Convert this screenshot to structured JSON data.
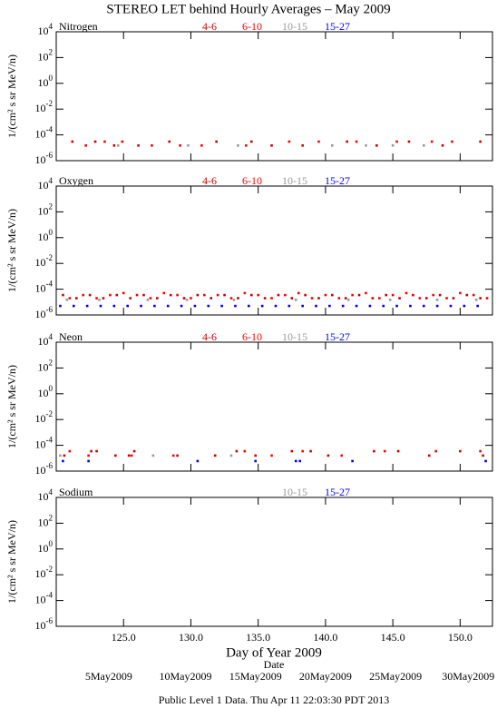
{
  "title": "STEREO LET behind Hourly Averages – May 2009",
  "footer": "Public Level 1 Data. Thu Apr 11 22:03:30 PDT 2013",
  "xlabel": "Day of Year 2009",
  "x2label": "Date",
  "xlim": [
    120,
    152.4
  ],
  "xticks": [
    {
      "value": 125,
      "label": "125.0"
    },
    {
      "value": 130,
      "label": "130.0"
    },
    {
      "value": 135,
      "label": "135.0"
    },
    {
      "value": 140,
      "label": "140.0"
    },
    {
      "value": 145,
      "label": "145.0"
    },
    {
      "value": 150,
      "label": "150.0"
    }
  ],
  "date_ticks": [
    {
      "value": 123.9,
      "label": "5May2009"
    },
    {
      "value": 129.6,
      "label": "10May2009"
    },
    {
      "value": 134.8,
      "label": "15May2009"
    },
    {
      "value": 140.0,
      "label": "20May2009"
    },
    {
      "value": 145.2,
      "label": "25May2009"
    },
    {
      "value": 150.6,
      "label": "30May2009"
    }
  ],
  "chart_data": [
    {
      "type": "scatter",
      "label": "Nitrogen",
      "ylabel": "1/(cm² s sr MeV/n)",
      "log_y": true,
      "ylim": [
        1e-06,
        10000
      ],
      "yticks": [
        {
          "value": 10000,
          "label": "10^4"
        },
        {
          "value": 100,
          "label": "10^2"
        },
        {
          "value": 1,
          "label": "10^0"
        },
        {
          "value": 0.01,
          "label": "10^-2"
        },
        {
          "value": 0.0001,
          "label": "10^-4"
        },
        {
          "value": 1e-06,
          "label": "10^-6"
        }
      ],
      "series": [
        {
          "name": "4-6",
          "color": "#cc0000",
          "x": [
            121.2,
            122.9,
            124.3,
            126.1,
            128.4,
            131.9,
            134.5,
            136.0,
            138.3,
            141.6,
            143.8,
            146.2,
            148.7,
            151.5
          ],
          "values": [
            3e-05,
            3e-05,
            1.5e-05,
            1.5e-05,
            3e-05,
            3e-05,
            3e-05,
            1.5e-05,
            1.5e-05,
            3e-05,
            1.5e-05,
            3e-05,
            1.5e-05,
            3e-05
          ]
        },
        {
          "name": "6-10",
          "color": "#ff0000",
          "x": [
            122.2,
            123.6,
            124.9,
            127.1,
            129.2,
            130.8,
            134.1,
            137.3,
            139.5,
            142.3,
            145.3,
            147.9,
            149.4
          ],
          "values": [
            1.5e-05,
            3e-05,
            3e-05,
            1.5e-05,
            1.5e-05,
            1.5e-05,
            1.5e-05,
            3e-05,
            3e-05,
            3e-05,
            3e-05,
            3e-05,
            3e-05
          ]
        },
        {
          "name": "10-15",
          "color": "#999999",
          "x": [
            124.6,
            129.8,
            133.5,
            140.5,
            143.0,
            145.0,
            147.3
          ],
          "values": [
            1.5e-05,
            1.5e-05,
            1.5e-05,
            1.5e-05,
            1.5e-05,
            1.5e-05,
            1.5e-05
          ]
        },
        {
          "name": "15-27",
          "color": "#0000ff",
          "x": [],
          "values": []
        }
      ]
    },
    {
      "type": "scatter",
      "label": "Oxygen",
      "ylabel": "1/(cm² s sr MeV/n)",
      "log_y": true,
      "ylim": [
        1e-06,
        10000
      ],
      "yticks": [
        {
          "value": 10000,
          "label": "10^4"
        },
        {
          "value": 100,
          "label": "10^2"
        },
        {
          "value": 1,
          "label": "10^0"
        },
        {
          "value": 0.01,
          "label": "10^-2"
        },
        {
          "value": 0.0001,
          "label": "10^-4"
        },
        {
          "value": 1e-06,
          "label": "10^-6"
        }
      ],
      "series": [
        {
          "name": "4-6",
          "color": "#cc0000",
          "x": [
            120.5,
            121.5,
            122.5,
            123.5,
            124.5,
            125.5,
            126.5,
            127.5,
            128.5,
            129.5,
            130.5,
            131.5,
            132.5,
            133.5,
            134.5,
            135.5,
            136.5,
            137.5,
            138.5,
            139.5,
            140.5,
            141.5,
            142.5,
            143.5,
            144.5,
            145.5,
            146.5,
            147.5,
            148.5,
            149.5,
            150.5,
            151.5
          ],
          "values": [
            3.5e-05,
            2e-05,
            3.5e-05,
            2e-05,
            3.5e-05,
            2e-05,
            3.5e-05,
            2e-05,
            3.5e-05,
            2e-05,
            3.5e-05,
            2e-05,
            3.5e-05,
            2e-05,
            3.5e-05,
            2e-05,
            3.5e-05,
            2e-05,
            3.5e-05,
            2e-05,
            3.5e-05,
            2e-05,
            3.5e-05,
            2e-05,
            3.5e-05,
            2e-05,
            3.5e-05,
            2e-05,
            3.5e-05,
            2e-05,
            3.5e-05,
            2e-05
          ]
        },
        {
          "name": "6-10",
          "color": "#ff0000",
          "x": [
            121.0,
            122.0,
            123.0,
            124.0,
            125.0,
            126.0,
            127.0,
            128.0,
            129.0,
            130.0,
            131.0,
            132.0,
            133.0,
            134.0,
            135.0,
            136.0,
            137.0,
            138.0,
            139.0,
            140.0,
            141.0,
            142.0,
            143.0,
            144.0,
            145.0,
            146.0,
            147.0,
            148.0,
            149.0,
            150.0,
            151.0,
            152.0
          ],
          "values": [
            2e-05,
            3.5e-05,
            2e-05,
            3.5e-05,
            5e-05,
            3.5e-05,
            2e-05,
            5e-05,
            3.5e-05,
            2e-05,
            3.5e-05,
            3.5e-05,
            2e-05,
            5e-05,
            3.5e-05,
            2e-05,
            3.5e-05,
            5e-05,
            2e-05,
            3.5e-05,
            2e-05,
            3.5e-05,
            5e-05,
            2e-05,
            3.5e-05,
            5e-05,
            2e-05,
            3.5e-05,
            2e-05,
            5e-05,
            3.5e-05,
            2e-05
          ]
        },
        {
          "name": "10-15",
          "color": "#999999",
          "x": [
            120.8,
            123.2,
            126.8,
            129.7,
            133.2,
            137.8,
            141.7,
            144.8,
            148.3,
            151.2
          ],
          "values": [
            1.5e-05,
            1.5e-05,
            1.5e-05,
            1.5e-05,
            1.5e-05,
            1.5e-05,
            1.5e-05,
            1.5e-05,
            1.5e-05,
            1.5e-05
          ]
        },
        {
          "name": "15-27",
          "color": "#0000ff",
          "x": [
            120.3,
            121.3,
            122.3,
            123.3,
            124.3,
            125.3,
            126.3,
            127.3,
            128.3,
            129.3,
            130.3,
            131.3,
            132.3,
            133.3,
            134.3,
            135.3,
            136.3,
            137.3,
            138.3,
            139.3,
            140.3,
            141.3,
            142.3,
            143.3,
            144.3,
            145.3,
            146.3,
            147.3,
            148.3,
            149.3,
            150.3,
            151.3
          ],
          "values": [
            5e-06,
            5e-06,
            5e-06,
            5e-06,
            5e-06,
            5e-06,
            5e-06,
            5e-06,
            5e-06,
            5e-06,
            5e-06,
            5e-06,
            5e-06,
            5e-06,
            5e-06,
            5e-06,
            5e-06,
            5e-06,
            5e-06,
            5e-06,
            5e-06,
            5e-06,
            5e-06,
            5e-06,
            5e-06,
            5e-06,
            5e-06,
            5e-06,
            5e-06,
            5e-06,
            5e-06,
            5e-06
          ]
        }
      ]
    },
    {
      "type": "scatter",
      "label": "Neon",
      "ylabel": "1/(cm² s sr MeV/n)",
      "log_y": true,
      "ylim": [
        1e-06,
        10000
      ],
      "yticks": [
        {
          "value": 10000,
          "label": "10^4"
        },
        {
          "value": 100,
          "label": "10^2"
        },
        {
          "value": 1,
          "label": "10^0"
        },
        {
          "value": 0.01,
          "label": "10^-2"
        },
        {
          "value": 0.0001,
          "label": "10^-4"
        },
        {
          "value": 1e-06,
          "label": "10^-6"
        }
      ],
      "series": [
        {
          "name": "4-6",
          "color": "#cc0000",
          "x": [
            120.6,
            122.6,
            123.0,
            124.4,
            125.4,
            125.8,
            129.0,
            131.8,
            133.4,
            134.8,
            137.5,
            138.9,
            140.2,
            143.6,
            145.4,
            147.7,
            150.0,
            151.7
          ],
          "values": [
            1.6e-05,
            3.5e-05,
            3.5e-05,
            1.6e-05,
            1.6e-05,
            3.5e-05,
            1.6e-05,
            1.6e-05,
            3.5e-05,
            1.6e-05,
            3.5e-05,
            3.5e-05,
            1.6e-05,
            3.5e-05,
            3.5e-05,
            1.6e-05,
            3.5e-05,
            1.6e-05
          ]
        },
        {
          "name": "6-10",
          "color": "#ff0000",
          "x": [
            121.0,
            122.4,
            125.6,
            128.7,
            134.0,
            136.0,
            138.3,
            141.2,
            144.4,
            148.2,
            151.5
          ],
          "values": [
            3.5e-05,
            1.6e-05,
            1.6e-05,
            1.6e-05,
            3.5e-05,
            1.6e-05,
            3.5e-05,
            1.6e-05,
            3.5e-05,
            3.5e-05,
            3.5e-05
          ]
        },
        {
          "name": "10-15",
          "color": "#999999",
          "x": [
            120.3,
            127.2,
            133.0
          ],
          "values": [
            1.6e-05,
            1.6e-05,
            1.6e-05
          ]
        },
        {
          "name": "15-27",
          "color": "#0000ff",
          "x": [
            120.5,
            122.4,
            130.5,
            134.8,
            137.8,
            138.1,
            142.0,
            151.9
          ],
          "values": [
            6e-06,
            6e-06,
            6e-06,
            6e-06,
            6e-06,
            6e-06,
            6e-06,
            6e-06
          ]
        }
      ]
    },
    {
      "type": "scatter",
      "label": "Sodium",
      "ylabel": "1/(cm² s sr MeV/n)",
      "log_y": true,
      "ylim": [
        1e-06,
        10000
      ],
      "yticks": [
        {
          "value": 10000,
          "label": "10^4"
        },
        {
          "value": 100,
          "label": "10^2"
        },
        {
          "value": 1,
          "label": "10^0"
        },
        {
          "value": 0.01,
          "label": "10^-2"
        },
        {
          "value": 0.0001,
          "label": "10^-4"
        },
        {
          "value": 1e-06,
          "label": "10^-6"
        }
      ],
      "series": [
        {
          "name": "10-15",
          "color": "#999999",
          "x": [],
          "values": []
        },
        {
          "name": "15-27",
          "color": "#0000ff",
          "x": [],
          "values": []
        }
      ]
    }
  ]
}
